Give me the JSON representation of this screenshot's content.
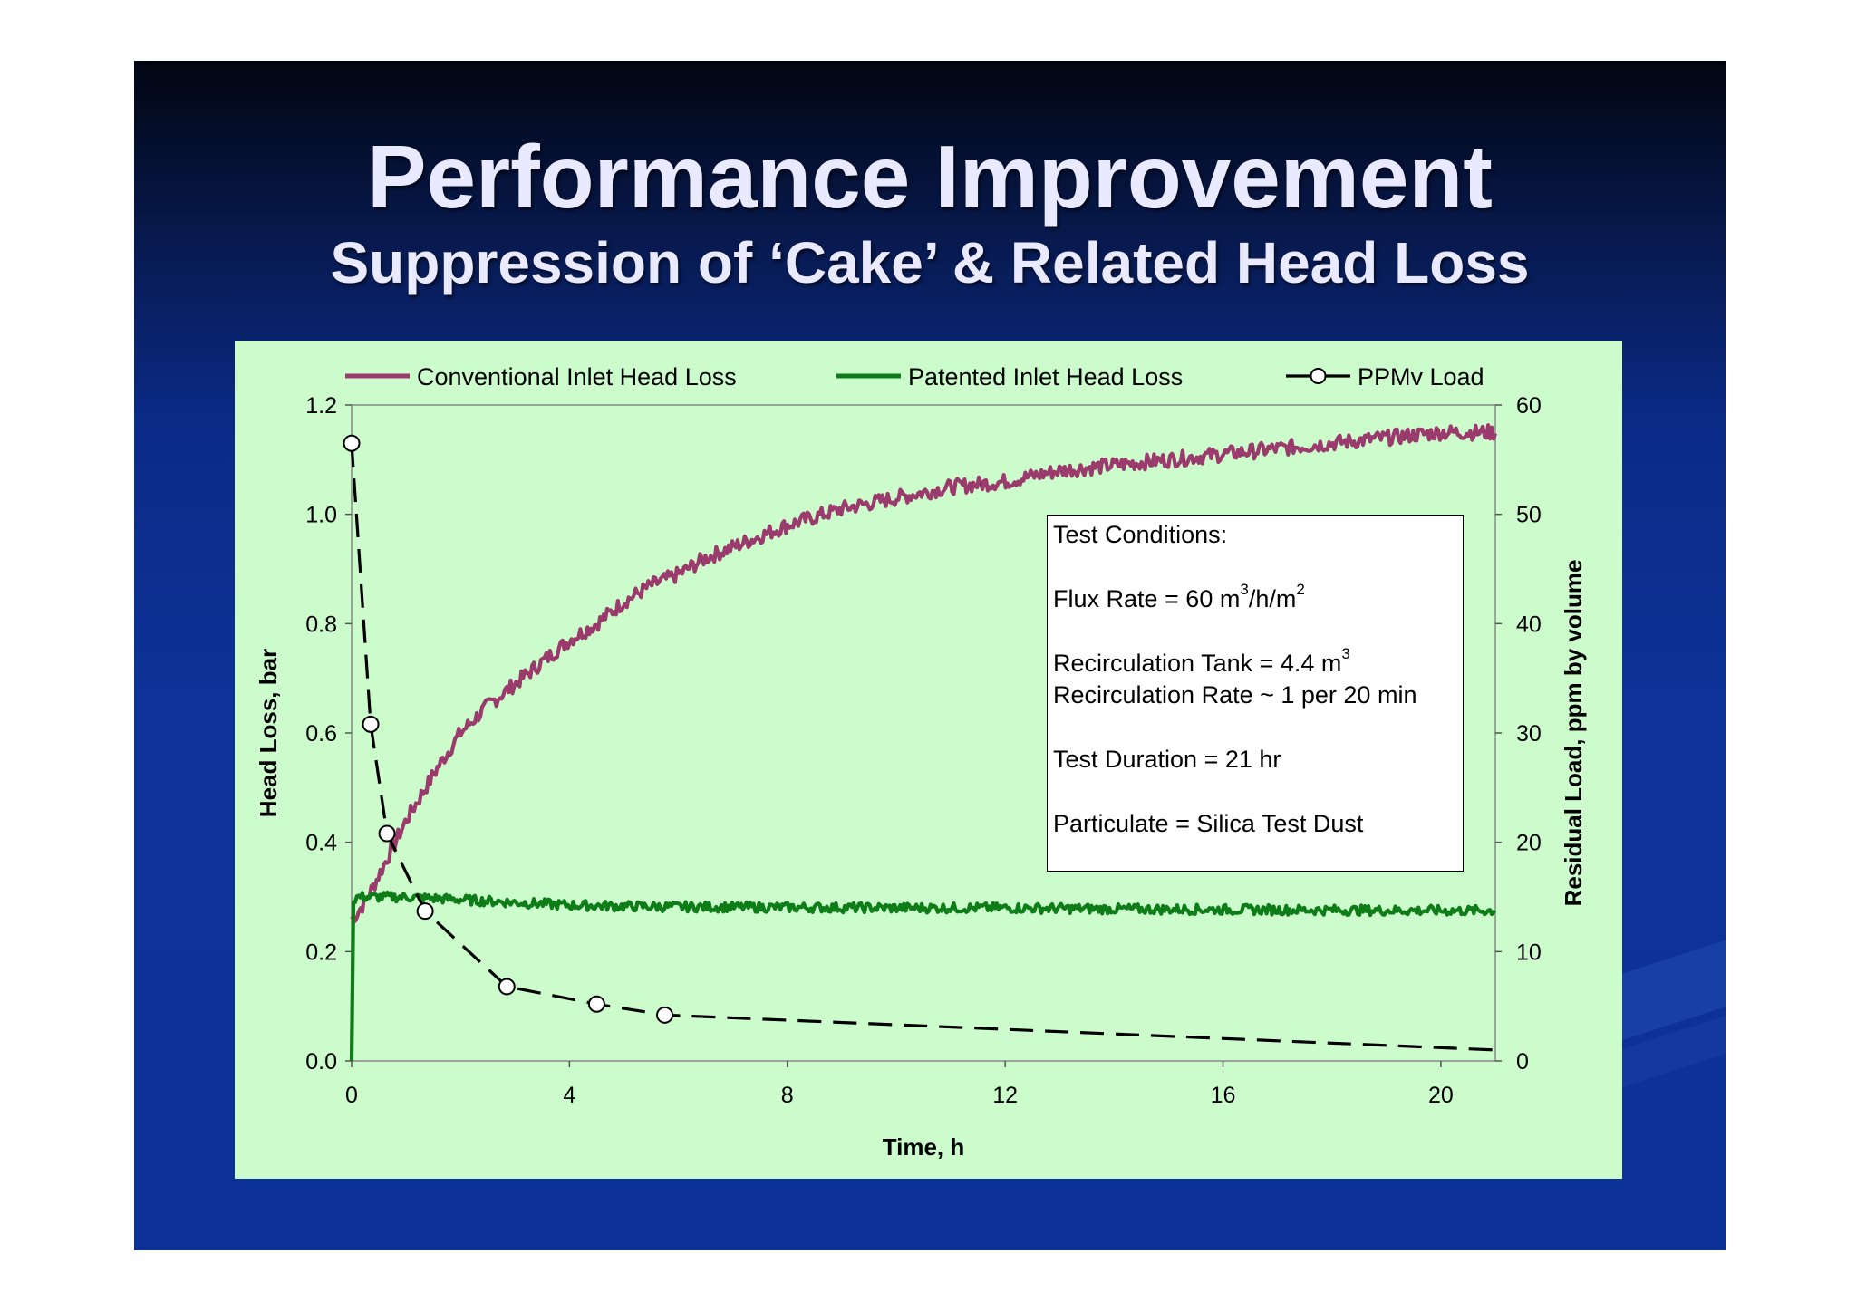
{
  "title": "Performance Improvement",
  "subtitle": "Suppression of ‘Cake’ & Related Head Loss",
  "colors": {
    "slide_background": "#0c3197",
    "chart_background": "#ccfccc",
    "conventional": "#9b3a6c",
    "patented": "#0e7d18",
    "ppmv": "#000000"
  },
  "conditions": {
    "heading": "Test Conditions:",
    "flux_prefix": "Flux Rate =  60 m",
    "flux_sup1": "3",
    "flux_mid": "/h/m",
    "flux_sup2": "2",
    "tank_prefix": "Recirculation Tank = 4.4 m",
    "tank_sup": "3",
    "rate": "Recirculation Rate ~ 1 per 20 min",
    "duration": "Test Duration = 21 hr",
    "particulate": "Particulate = Silica Test Dust"
  },
  "chart_data": {
    "type": "line",
    "xlabel": "Time, h",
    "ylabel": "Head Loss, bar",
    "y2label": "Residual Load, ppm by volume",
    "xlim": [
      0,
      21
    ],
    "ylim": [
      0,
      1.2
    ],
    "y2lim": [
      0,
      60
    ],
    "x_ticks": [
      "0",
      "4",
      "8",
      "12",
      "16",
      "20"
    ],
    "y_ticks": [
      "0.0",
      "0.2",
      "0.4",
      "0.6",
      "0.8",
      "1.0",
      "1.2"
    ],
    "y2_ticks": [
      "0",
      "10",
      "20",
      "30",
      "40",
      "50",
      "60"
    ],
    "grid": false,
    "legend_position": "top",
    "series": [
      {
        "name": "Conventional Inlet Head Loss",
        "axis": "left",
        "style": "solid",
        "x": [
          0,
          0.1,
          0.3,
          0.5,
          0.7,
          1.0,
          1.3,
          1.6,
          2.0,
          2.5,
          3.0,
          3.5,
          4.0,
          4.5,
          5.0,
          5.5,
          6.0,
          6.5,
          7.0,
          8.0,
          9.0,
          10.0,
          11.0,
          12.0,
          13.0,
          14.0,
          15.0,
          16.0,
          17.0,
          18.0,
          19.0,
          20.0,
          21.0
        ],
        "y": [
          0.26,
          0.27,
          0.3,
          0.34,
          0.38,
          0.44,
          0.49,
          0.54,
          0.6,
          0.65,
          0.69,
          0.73,
          0.77,
          0.8,
          0.84,
          0.87,
          0.89,
          0.92,
          0.94,
          0.98,
          1.01,
          1.03,
          1.05,
          1.06,
          1.08,
          1.09,
          1.1,
          1.11,
          1.12,
          1.13,
          1.14,
          1.15,
          1.15
        ]
      },
      {
        "name": "Patented Inlet Head Loss",
        "axis": "left",
        "style": "solid",
        "x": [
          0,
          0.03,
          0.08,
          0.5,
          1.0,
          2.0,
          3.0,
          4.0,
          5.0,
          6.0,
          8.0,
          10.0,
          12.0,
          14.0,
          16.0,
          18.0,
          20.0,
          21.0
        ],
        "y": [
          0.0,
          0.29,
          0.3,
          0.3,
          0.3,
          0.295,
          0.29,
          0.285,
          0.283,
          0.282,
          0.281,
          0.28,
          0.28,
          0.278,
          0.277,
          0.276,
          0.275,
          0.275
        ]
      },
      {
        "name": "PPMv Load",
        "axis": "right",
        "style": "dashed",
        "x": [
          0,
          0.35,
          0.65,
          1.35,
          2.85,
          4.5,
          5.75,
          21.0
        ],
        "y": [
          56.5,
          30.8,
          20.8,
          13.7,
          6.8,
          5.2,
          4.2,
          1.0
        ],
        "markers_x": [
          0,
          0.35,
          0.65,
          1.35,
          2.85,
          4.5,
          5.75
        ],
        "markers_y": [
          56.5,
          30.8,
          20.8,
          13.7,
          6.8,
          5.2,
          4.2
        ]
      }
    ]
  }
}
